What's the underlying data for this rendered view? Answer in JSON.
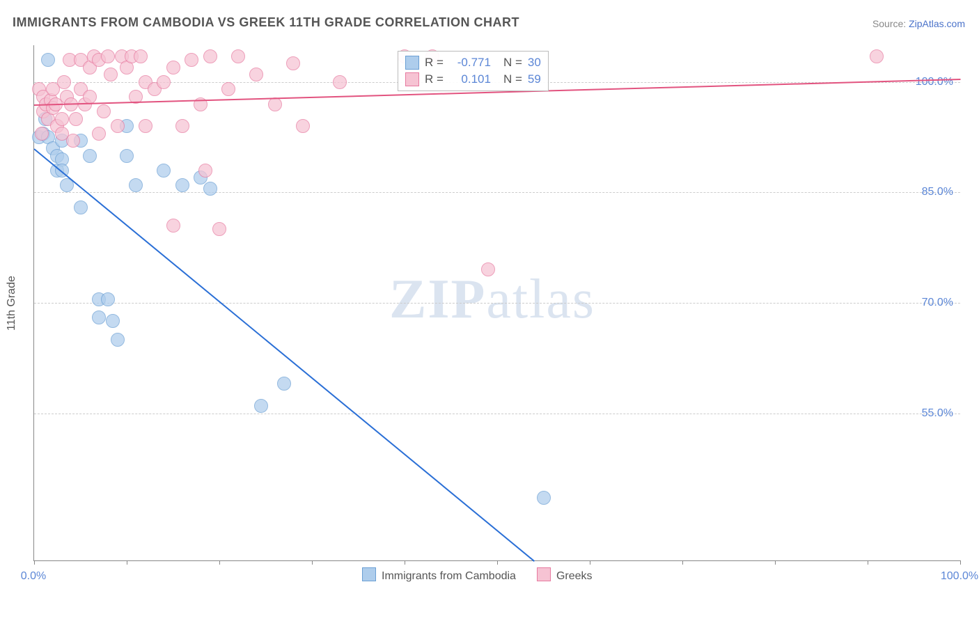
{
  "title": "IMMIGRANTS FROM CAMBODIA VS GREEK 11TH GRADE CORRELATION CHART",
  "source_prefix": "Source: ",
  "source_link": "ZipAtlas.com",
  "ylabel": "11th Grade",
  "watermark_bold": "ZIP",
  "watermark_rest": "atlas",
  "chart": {
    "type": "scatter",
    "xlim": [
      0,
      100
    ],
    "ylim": [
      35,
      105
    ],
    "y_gridlines": [
      55,
      70,
      85,
      100
    ],
    "y_tick_labels": [
      "55.0%",
      "70.0%",
      "85.0%",
      "100.0%"
    ],
    "x_ticks": [
      0,
      10,
      20,
      30,
      40,
      50,
      60,
      70,
      80,
      90,
      100
    ],
    "x_tick_labels": {
      "0": "0.0%",
      "100": "100.0%"
    },
    "background_color": "#ffffff",
    "grid_color": "#cccccc",
    "axis_color": "#888888",
    "marker_radius": 10,
    "marker_border_width": 1.5,
    "series": [
      {
        "name": "Immigrants from Cambodia",
        "fill": "#aecdec",
        "stroke": "#6a9fd4",
        "line_color": "#2a6fd6",
        "R": "-0.771",
        "N": "30",
        "trend": {
          "x1": 0,
          "y1": 91,
          "x2": 54,
          "y2": 35
        },
        "points": [
          [
            0.5,
            92.5
          ],
          [
            1,
            93
          ],
          [
            1.2,
            95
          ],
          [
            1.5,
            103
          ],
          [
            1.5,
            92.5
          ],
          [
            2,
            91
          ],
          [
            2.5,
            90
          ],
          [
            2.5,
            88
          ],
          [
            3,
            89.5
          ],
          [
            3,
            88
          ],
          [
            3,
            92
          ],
          [
            3.5,
            86
          ],
          [
            5,
            92
          ],
          [
            5,
            83
          ],
          [
            6,
            90
          ],
          [
            7,
            70.5
          ],
          [
            8,
            70.5
          ],
          [
            7,
            68
          ],
          [
            8.5,
            67.5
          ],
          [
            9,
            65
          ],
          [
            10,
            90
          ],
          [
            10,
            94
          ],
          [
            11,
            86
          ],
          [
            14,
            88
          ],
          [
            16,
            86
          ],
          [
            18,
            87
          ],
          [
            19,
            85.5
          ],
          [
            24.5,
            56
          ],
          [
            27,
            59
          ],
          [
            55,
            43.5
          ]
        ]
      },
      {
        "name": "Greeks",
        "fill": "#f6c3d3",
        "stroke": "#e77aa0",
        "line_color": "#e2537f",
        "R": "0.101",
        "N": "59",
        "trend": {
          "x1": 0,
          "y1": 97,
          "x2": 100,
          "y2": 100.5
        },
        "points": [
          [
            0.5,
            99
          ],
          [
            0.8,
            93
          ],
          [
            1,
            96
          ],
          [
            1,
            98
          ],
          [
            1.3,
            97
          ],
          [
            1.5,
            95
          ],
          [
            1.8,
            97.5
          ],
          [
            2,
            99
          ],
          [
            2,
            96.5
          ],
          [
            2.3,
            97
          ],
          [
            2.5,
            94
          ],
          [
            3,
            95
          ],
          [
            3,
            93
          ],
          [
            3.2,
            100
          ],
          [
            3.5,
            98
          ],
          [
            3.8,
            103
          ],
          [
            4,
            97
          ],
          [
            4.2,
            92
          ],
          [
            4.5,
            95
          ],
          [
            5,
            103
          ],
          [
            5,
            99
          ],
          [
            5.5,
            97
          ],
          [
            6,
            102
          ],
          [
            6,
            98
          ],
          [
            6.5,
            103.5
          ],
          [
            7,
            103
          ],
          [
            7,
            93
          ],
          [
            7.5,
            96
          ],
          [
            8,
            103.5
          ],
          [
            8.3,
            101
          ],
          [
            9,
            94
          ],
          [
            9.5,
            103.5
          ],
          [
            10,
            102
          ],
          [
            10.5,
            103.5
          ],
          [
            11,
            98
          ],
          [
            11.5,
            103.5
          ],
          [
            12,
            94
          ],
          [
            12,
            100
          ],
          [
            13,
            99
          ],
          [
            14,
            100
          ],
          [
            15,
            102
          ],
          [
            15,
            80.5
          ],
          [
            16,
            94
          ],
          [
            17,
            103
          ],
          [
            18,
            97
          ],
          [
            18.5,
            88
          ],
          [
            19,
            103.5
          ],
          [
            20,
            80
          ],
          [
            21,
            99
          ],
          [
            22,
            103.5
          ],
          [
            24,
            101
          ],
          [
            26,
            97
          ],
          [
            28,
            102.5
          ],
          [
            29,
            94
          ],
          [
            33,
            100
          ],
          [
            40,
            103.5
          ],
          [
            43,
            103.5
          ],
          [
            49,
            74.5
          ],
          [
            91,
            103.5
          ]
        ]
      }
    ]
  },
  "legend_top": {
    "R_label": "R =",
    "N_label": "N ="
  },
  "legend_bottom": {
    "items": [
      "Immigrants from Cambodia",
      "Greeks"
    ]
  }
}
